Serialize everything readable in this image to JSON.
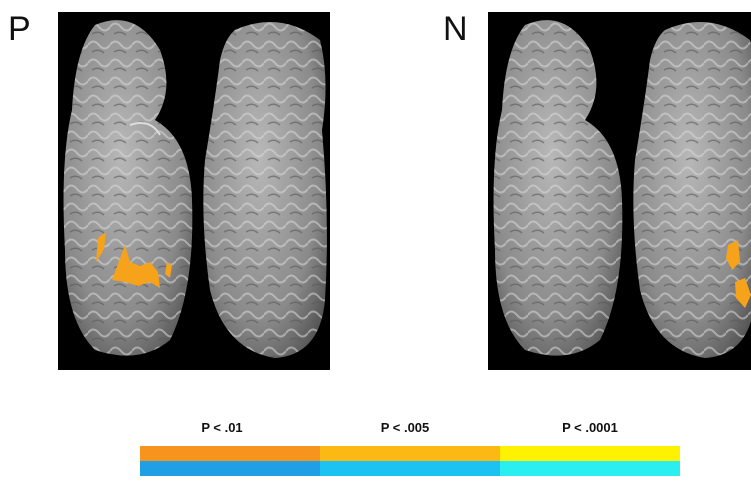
{
  "panels": [
    {
      "label": "P"
    },
    {
      "label": "N"
    }
  ],
  "legend": {
    "thresholds": [
      "P < .01",
      "P < .005",
      "P < .0001"
    ]
  }
}
